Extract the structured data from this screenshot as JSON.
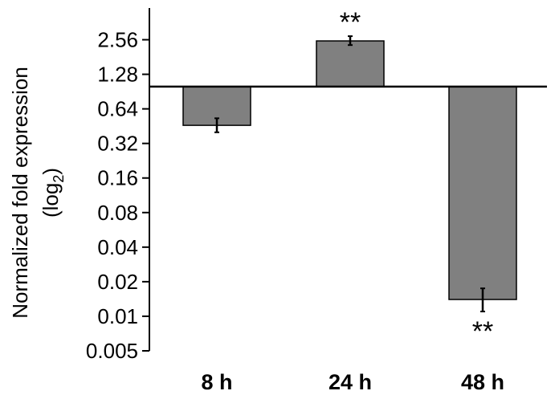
{
  "chart_data": {
    "type": "bar",
    "scale": "log2",
    "baseline": 1,
    "ylabel_line1": "Normalized fold expression",
    "ylabel_line2_prefix": "(log",
    "ylabel_line2_sub": "2",
    "ylabel_line2_suffix": ")",
    "yticks": [
      2.56,
      1.28,
      0.64,
      0.32,
      0.16,
      0.08,
      0.04,
      0.02,
      0.01,
      0.005
    ],
    "ytick_labels": [
      "2.56",
      "1.28",
      "0.64",
      "0.32",
      "0.16",
      "0.08",
      "0.04",
      "0.02",
      "0.01",
      "0.005"
    ],
    "ylim": [
      0.005,
      3.5
    ],
    "categories": [
      "8 h",
      "24 h",
      "48 h"
    ],
    "values": [
      0.46,
      2.5,
      0.014
    ],
    "error_low": [
      0.4,
      2.3,
      0.011
    ],
    "error_high": [
      0.53,
      2.75,
      0.0175
    ],
    "significance": [
      "",
      "**",
      "**"
    ],
    "bar_color": "#808080",
    "grid": false
  }
}
